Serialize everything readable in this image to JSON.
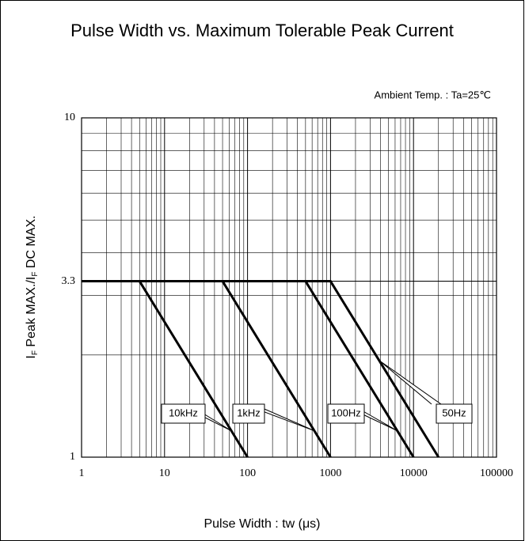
{
  "chart_data": {
    "type": "line",
    "title": "Pulse Width vs. Maximum Tolerable Peak Current",
    "annotation": "Ambient Temp. : Ta=25℃",
    "x_label": "Pulse Width : tw (μs)",
    "y_label": [
      {
        "text": "I"
      },
      {
        "text": "F",
        "sub": true
      },
      {
        "text": " Peak MAX./"
      },
      {
        "text": "I"
      },
      {
        "text": "F",
        "sub": true
      },
      {
        "text": " DC MAX."
      }
    ],
    "x_scale": "log",
    "y_scale": "log",
    "grid": true,
    "minor_grid": true,
    "xlim": [
      1,
      100000
    ],
    "ylim": [
      1,
      10
    ],
    "xticks": [
      1,
      10,
      100,
      1000,
      10000,
      100000
    ],
    "yticks": [
      1,
      3.3,
      10
    ],
    "series": [
      {
        "name": "10kHz",
        "color": "#000000",
        "x": [
          1,
          5,
          100
        ],
        "values": [
          3.3,
          3.3,
          1
        ]
      },
      {
        "name": "1kHz",
        "color": "#000000",
        "x": [
          1,
          50,
          1000
        ],
        "values": [
          3.3,
          3.3,
          1
        ]
      },
      {
        "name": "100Hz",
        "color": "#000000",
        "x": [
          1,
          500,
          10000
        ],
        "values": [
          3.3,
          3.3,
          1
        ]
      },
      {
        "name": "50Hz",
        "color": "#000000",
        "x": [
          1,
          1000,
          20000
        ],
        "values": [
          3.3,
          3.3,
          1
        ]
      }
    ]
  }
}
